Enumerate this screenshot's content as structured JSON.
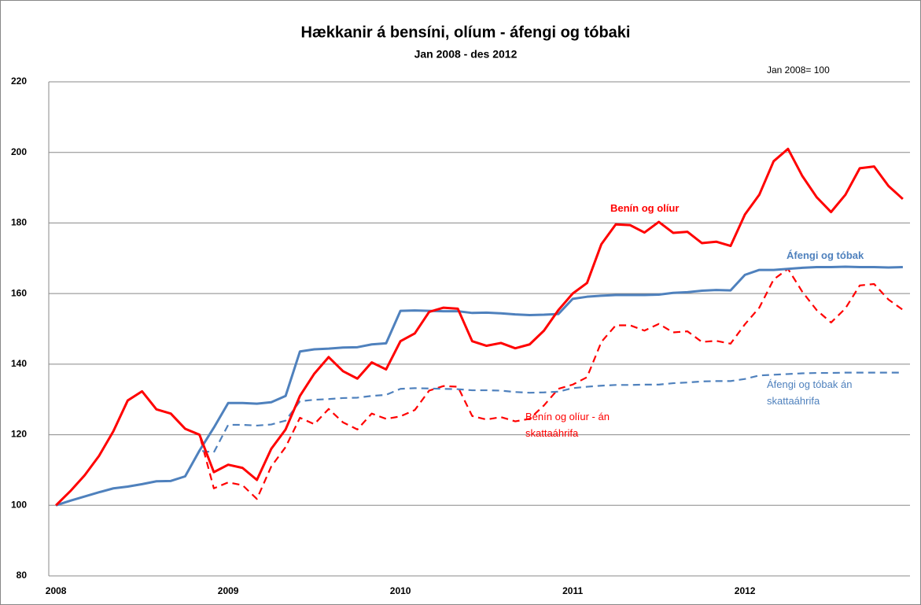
{
  "chart_data": {
    "type": "line",
    "title": "Hækkanir á bensíni, olíum - áfengi og tóbaki",
    "subtitle": "Jan 2008 - des 2012",
    "annotation": "Jan 2008= 100",
    "categories": [
      "2008",
      null,
      null,
      null,
      null,
      null,
      null,
      null,
      null,
      null,
      null,
      null,
      "2009",
      null,
      null,
      null,
      null,
      null,
      null,
      null,
      null,
      null,
      null,
      null,
      "2010",
      null,
      null,
      null,
      null,
      null,
      null,
      null,
      null,
      null,
      null,
      null,
      "2011",
      null,
      null,
      null,
      null,
      null,
      null,
      null,
      null,
      null,
      null,
      null,
      "2012",
      null,
      null,
      null,
      null,
      null,
      null,
      null,
      null,
      null,
      null,
      null
    ],
    "ylim": [
      80,
      220
    ],
    "yticks": [
      80,
      100,
      120,
      140,
      160,
      180,
      200,
      220
    ],
    "grid": true,
    "series": [
      {
        "name": "Benín og olíur - án skattaáhrifa",
        "color": "#ff0000",
        "dash": true,
        "values": [
          100,
          104,
          108.5,
          114,
          121,
          129.7,
          132.3,
          127.2,
          126,
          121.7,
          120,
          104.8,
          106.5,
          105.7,
          101.8,
          111,
          116.5,
          124.8,
          123,
          127.3,
          123.5,
          121.5,
          126,
          124.5,
          125.2,
          127,
          132.5,
          133.8,
          133.6,
          125.3,
          124.3,
          125,
          123.8,
          124.5,
          128.3,
          133,
          134.2,
          136.3,
          146.3,
          151,
          151,
          149.5,
          151.4,
          149,
          149.3,
          146.3,
          146.6,
          145.8,
          151.3,
          156,
          164,
          167,
          160.5,
          155.3,
          151.8,
          155.8,
          162.3,
          162.7,
          158.3,
          155.4
        ]
      },
      {
        "name": "Áfengi og tóbak án skattaáhrifa",
        "color": "#4f81bd",
        "dash": true,
        "values": [
          100,
          101.3,
          102.5,
          103.7,
          104.8,
          105.3,
          106,
          106.8,
          106.9,
          108.2,
          115.5,
          115,
          122.8,
          122.8,
          122.6,
          122.9,
          124,
          129.5,
          129.9,
          130.1,
          130.4,
          130.5,
          131,
          131.3,
          133,
          133.2,
          133.1,
          133,
          132.9,
          132.6,
          132.6,
          132.5,
          132.1,
          131.9,
          132,
          132.2,
          133.2,
          133.6,
          133.9,
          134.1,
          134.1,
          134.2,
          134.2,
          134.6,
          134.8,
          135.1,
          135.2,
          135.2,
          135.8,
          136.8,
          137,
          137.2,
          137.4,
          137.5,
          137.5,
          137.6,
          137.6,
          137.6,
          137.6,
          137.6
        ]
      },
      {
        "name": "Áfengi og tóbak",
        "color": "#4f81bd",
        "dash": false,
        "values": [
          100,
          101.3,
          102.5,
          103.7,
          104.8,
          105.3,
          106,
          106.8,
          106.9,
          108.2,
          115.5,
          122,
          129,
          129,
          128.8,
          129.2,
          131,
          143.6,
          144.2,
          144.4,
          144.7,
          144.8,
          145.6,
          145.9,
          155.1,
          155.2,
          155.1,
          155,
          155,
          154.5,
          154.6,
          154.4,
          154.1,
          153.9,
          154,
          154.2,
          158.5,
          159.1,
          159.4,
          159.6,
          159.6,
          159.6,
          159.7,
          160.2,
          160.4,
          160.8,
          161,
          160.9,
          165.3,
          166.7,
          166.7,
          167,
          167.3,
          167.5,
          167.5,
          167.6,
          167.5,
          167.5,
          167.4,
          167.5
        ]
      },
      {
        "name": "Benín og olíur",
        "color": "#ff0000",
        "dash": false,
        "values": [
          100,
          104,
          108.5,
          114,
          121,
          129.7,
          132.3,
          127.2,
          126,
          121.7,
          120,
          109.4,
          111.5,
          110.6,
          107.2,
          116,
          121.5,
          131,
          137.3,
          142,
          138,
          135.9,
          140.5,
          138.5,
          146.5,
          148.7,
          154.8,
          156,
          155.7,
          146.5,
          145.2,
          146,
          144.5,
          145.6,
          149.5,
          155.3,
          160,
          163,
          174,
          179.6,
          179.4,
          177.3,
          180.3,
          177.2,
          177.5,
          174.3,
          174.7,
          173.5,
          182.4,
          188,
          197.5,
          201,
          193.3,
          187.3,
          183.1,
          188,
          195.5,
          196,
          190.5,
          186.8
        ]
      }
    ]
  }
}
